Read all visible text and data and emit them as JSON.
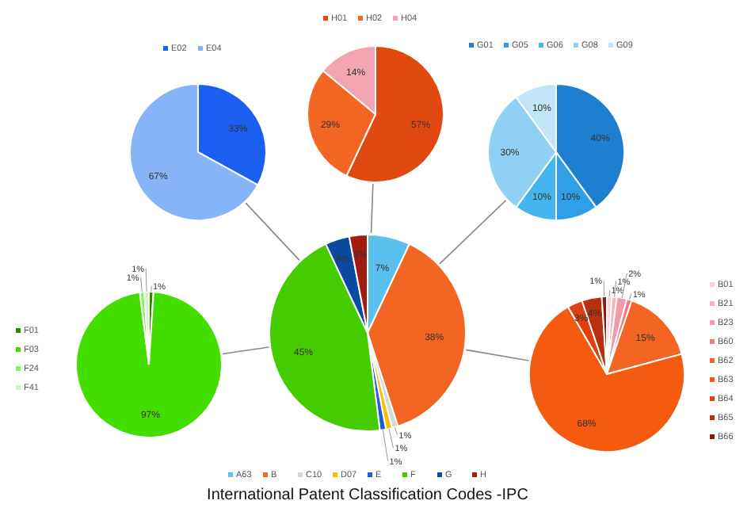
{
  "chart_data": [
    {
      "type": "pie",
      "title": "International Patent Classification Codes -IPC",
      "categories": [
        "A63",
        "B",
        "C10",
        "D07",
        "E",
        "F",
        "G",
        "H"
      ],
      "values": [
        7,
        38,
        1,
        1,
        1,
        45,
        4,
        3
      ],
      "colors": [
        "#5bc0f0",
        "#f26522",
        "#d8d8d8",
        "#f7c000",
        "#1f5fd0",
        "#44cc00",
        "#0b4aa0",
        "#a01e10"
      ],
      "legend": "bottom",
      "value_labels": [
        "7%",
        "38%",
        "1%",
        "1%",
        "1%",
        "45%",
        "4%",
        "3%"
      ]
    },
    {
      "type": "pie",
      "categories": [
        "E02",
        "E04"
      ],
      "values": [
        33,
        67
      ],
      "colors": [
        "#1a5ff0",
        "#86b4f8"
      ],
      "legend": "top",
      "value_labels": [
        "33%",
        "67%"
      ]
    },
    {
      "type": "pie",
      "categories": [
        "H01",
        "H02",
        "H04"
      ],
      "values": [
        57,
        29,
        14
      ],
      "colors": [
        "#e04a10",
        "#f26522",
        "#f4a4b0"
      ],
      "legend": "top",
      "value_labels": [
        "57%",
        "29%",
        "14%"
      ]
    },
    {
      "type": "pie",
      "categories": [
        "G01",
        "G05",
        "G06",
        "G08",
        "G09"
      ],
      "values": [
        40,
        10,
        10,
        30,
        10
      ],
      "colors": [
        "#1e7fd0",
        "#2fa0e8",
        "#45b5f0",
        "#8fd0f5",
        "#c0e4f8"
      ],
      "legend": "top",
      "value_labels": [
        "40%",
        "10%",
        "10%",
        "30%",
        "10%"
      ]
    },
    {
      "type": "pie",
      "categories": [
        "F01",
        "F03",
        "F24",
        "F41"
      ],
      "values": [
        1,
        97,
        1,
        1
      ],
      "colors": [
        "#2a8a00",
        "#44dd00",
        "#88ee66",
        "#ccf5bb"
      ],
      "legend": "left",
      "value_labels": [
        "1%",
        "97%",
        "1%",
        "1%"
      ]
    },
    {
      "type": "pie",
      "categories": [
        "B01",
        "B21",
        "B23",
        "B60",
        "B62",
        "B63",
        "B64",
        "B65",
        "B66"
      ],
      "values": [
        1,
        1,
        2,
        1,
        15,
        68,
        3,
        4,
        1
      ],
      "colors": [
        "#fbd0d8",
        "#f8b0c0",
        "#f49aa8",
        "#f07a80",
        "#f26522",
        "#f45a10",
        "#e04010",
        "#b83010",
        "#901808"
      ],
      "legend": "right",
      "value_labels": [
        "1%",
        "1%",
        "2%",
        "1%",
        "15%",
        "68%",
        "3%",
        "4%",
        "1%"
      ]
    }
  ]
}
